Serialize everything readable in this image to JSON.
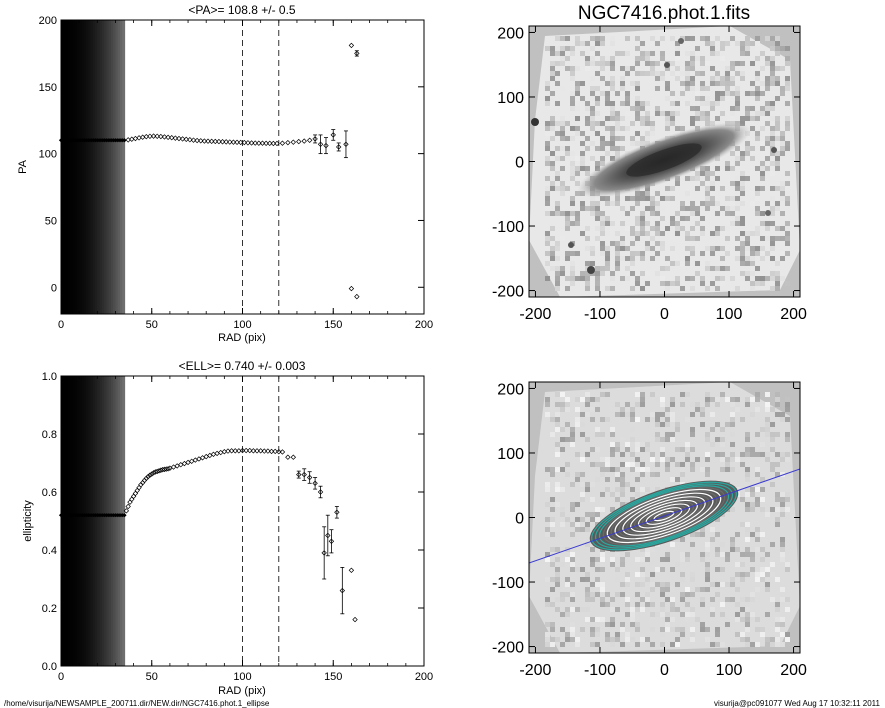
{
  "footer": {
    "path": "/home/visurija/NEWSAMPLE_200711.dir/NEW.dir/NGC7416.phot.1_ellipse",
    "user_stamp": "visurija@pc091077  Wed Aug 17 10:32:11 2011"
  },
  "chart_data": [
    {
      "id": "pa",
      "type": "scatter",
      "title": "<PA>= 108.8 +/-   0.5",
      "xlabel": "RAD (pix)",
      "ylabel": "PA",
      "xlim": [
        0,
        200
      ],
      "ylim": [
        -20,
        200
      ],
      "xticks": [
        "0",
        "50",
        "100",
        "150",
        "200"
      ],
      "yticks": [
        "0",
        "50",
        "100",
        "150",
        "200"
      ],
      "dashed_x": [
        100,
        120
      ],
      "shaded_band_x": [
        0,
        35
      ],
      "series": [
        {
          "x": [
            0,
            1,
            2,
            3,
            4,
            5,
            6,
            7,
            8,
            9,
            10,
            11,
            12,
            13,
            14,
            15,
            16,
            17,
            18,
            19,
            20,
            21,
            22,
            23,
            24,
            25,
            26,
            27,
            28,
            29,
            30,
            31,
            32,
            33,
            34,
            35,
            37,
            39,
            41,
            43,
            45,
            47,
            49,
            51,
            53,
            55,
            57,
            59,
            61,
            63,
            65,
            67,
            69,
            71,
            73,
            75,
            77,
            79,
            81,
            83,
            85,
            87,
            89,
            91,
            93,
            95,
            97,
            99,
            101,
            103,
            105,
            107,
            109,
            111,
            113,
            115,
            117,
            119,
            122,
            125,
            128,
            131,
            134,
            137,
            140,
            143,
            146,
            150,
            153,
            157,
            160,
            163
          ],
          "y": [
            110,
            110,
            110,
            110,
            110,
            110,
            110,
            110,
            110,
            110,
            110,
            110,
            110,
            110,
            110,
            110,
            110,
            110,
            110,
            110,
            110,
            110,
            110,
            110,
            110,
            110,
            110,
            110,
            110,
            110,
            110,
            110,
            110,
            110,
            110,
            110,
            110.3,
            110.8,
            111.3,
            111.8,
            112.3,
            112.7,
            113.0,
            113.1,
            113.0,
            112.8,
            112.5,
            112.2,
            111.9,
            111.6,
            111.3,
            111.0,
            110.7,
            110.4,
            110.1,
            109.8,
            109.6,
            109.4,
            109.3,
            109.2,
            109.1,
            109.0,
            108.9,
            108.8,
            108.7,
            108.6,
            108.5,
            108.4,
            108.3,
            108.1,
            108.0,
            107.9,
            107.8,
            107.8,
            107.7,
            107.7,
            107.6,
            107.6,
            107.8,
            108.2,
            108.6,
            109.0,
            109.4,
            110.0,
            111.0,
            107.0,
            106.0,
            114.0,
            105.0,
            107.0,
            181.0,
            175.0
          ],
          "err": [
            0,
            0,
            0,
            0,
            0,
            0,
            0,
            0,
            0,
            0,
            0,
            0,
            0,
            0,
            0,
            0,
            0,
            0,
            0,
            0,
            0,
            0,
            0,
            0,
            0,
            0,
            0,
            0,
            0,
            0,
            0,
            0,
            0,
            0,
            0,
            0,
            0,
            0,
            0,
            0,
            0,
            0,
            0,
            0,
            0,
            0,
            0,
            0,
            0,
            0,
            0,
            0,
            0,
            0,
            0,
            0,
            0,
            0,
            0,
            0,
            0,
            0,
            0,
            0,
            0,
            0,
            0,
            0,
            0,
            0,
            0,
            0,
            0,
            0,
            0,
            0,
            0,
            0,
            0,
            0,
            0,
            0,
            0,
            0,
            3,
            7,
            6,
            4,
            3,
            10,
            0,
            2
          ]
        },
        {
          "x": [
            160,
            163
          ],
          "y": [
            -1,
            -7
          ],
          "err": [
            0,
            0
          ]
        }
      ]
    },
    {
      "id": "ell",
      "type": "scatter",
      "title": "<ELL>= 0.740 +/-  0.003",
      "xlabel": "RAD (pix)",
      "ylabel": "ellipticity",
      "xlim": [
        0,
        200
      ],
      "ylim": [
        0,
        1
      ],
      "xticks": [
        "0",
        "50",
        "100",
        "150",
        "200"
      ],
      "yticks": [
        "0.0",
        "0.2",
        "0.4",
        "0.6",
        "0.8",
        "1.0"
      ],
      "dashed_x": [
        100,
        120
      ],
      "shaded_band_x": [
        0,
        35
      ],
      "series": [
        {
          "x": [
            0,
            1,
            2,
            3,
            4,
            5,
            6,
            7,
            8,
            9,
            10,
            11,
            12,
            13,
            14,
            15,
            16,
            17,
            18,
            19,
            20,
            21,
            22,
            23,
            24,
            25,
            26,
            27,
            28,
            29,
            30,
            31,
            32,
            33,
            34,
            35,
            36,
            37,
            38,
            39,
            40,
            41,
            42,
            43,
            44,
            45,
            46,
            47,
            48,
            49,
            50,
            51,
            52,
            53,
            54,
            55,
            56,
            57,
            58,
            59,
            60,
            62,
            64,
            66,
            68,
            70,
            72,
            74,
            76,
            78,
            80,
            82,
            84,
            86,
            88,
            90,
            92,
            94,
            96,
            98,
            100,
            102,
            104,
            106,
            108,
            110,
            112,
            114,
            116,
            118,
            120,
            122,
            125,
            128,
            131,
            134,
            137,
            140,
            143,
            145,
            147,
            149,
            152,
            155,
            160,
            162
          ],
          "y": [
            0.52,
            0.52,
            0.52,
            0.52,
            0.52,
            0.52,
            0.52,
            0.52,
            0.52,
            0.52,
            0.52,
            0.52,
            0.52,
            0.52,
            0.52,
            0.52,
            0.52,
            0.52,
            0.52,
            0.52,
            0.52,
            0.52,
            0.52,
            0.52,
            0.52,
            0.52,
            0.52,
            0.52,
            0.52,
            0.52,
            0.52,
            0.52,
            0.52,
            0.52,
            0.52,
            0.52,
            0.535,
            0.55,
            0.565,
            0.575,
            0.585,
            0.595,
            0.605,
            0.615,
            0.625,
            0.632,
            0.64,
            0.647,
            0.653,
            0.658,
            0.662,
            0.666,
            0.669,
            0.671,
            0.673,
            0.675,
            0.677,
            0.678,
            0.679,
            0.68,
            0.682,
            0.686,
            0.69,
            0.694,
            0.698,
            0.702,
            0.706,
            0.71,
            0.714,
            0.718,
            0.722,
            0.726,
            0.73,
            0.733,
            0.736,
            0.739,
            0.741,
            0.742,
            0.742,
            0.742,
            0.743,
            0.743,
            0.743,
            0.742,
            0.742,
            0.742,
            0.741,
            0.741,
            0.74,
            0.74,
            0.739,
            0.738,
            0.72,
            0.72,
            0.66,
            0.66,
            0.65,
            0.63,
            0.6,
            0.39,
            0.45,
            0.43,
            0.53,
            0.26,
            0.33,
            0.16
          ],
          "err": [
            0,
            0,
            0,
            0,
            0,
            0,
            0,
            0,
            0,
            0,
            0,
            0,
            0,
            0,
            0,
            0,
            0,
            0,
            0,
            0,
            0,
            0,
            0,
            0,
            0,
            0,
            0,
            0,
            0,
            0,
            0,
            0,
            0,
            0,
            0,
            0,
            0,
            0,
            0,
            0,
            0,
            0,
            0,
            0,
            0,
            0,
            0,
            0,
            0,
            0,
            0,
            0,
            0,
            0,
            0,
            0,
            0,
            0,
            0,
            0,
            0,
            0,
            0,
            0,
            0,
            0,
            0,
            0,
            0,
            0,
            0,
            0,
            0,
            0,
            0,
            0,
            0,
            0,
            0,
            0,
            0,
            0,
            0,
            0,
            0,
            0,
            0,
            0,
            0,
            0,
            0,
            0,
            0,
            0,
            0.012,
            0.02,
            0.02,
            0.02,
            0.02,
            0.09,
            0.07,
            0.04,
            0.02,
            0.08,
            0,
            0
          ]
        }
      ]
    },
    {
      "id": "image",
      "type": "heatmap",
      "title": "NGC7416.phot.1.fits",
      "xlim": [
        -210,
        210
      ],
      "ylim": [
        -210,
        210
      ],
      "xticks": [
        "-200",
        "-100",
        "0",
        "100",
        "200"
      ],
      "yticks": [
        "-200",
        "-100",
        "0",
        "100",
        "200"
      ]
    },
    {
      "id": "model",
      "type": "heatmap",
      "title": "",
      "xlim": [
        -210,
        210
      ],
      "ylim": [
        -210,
        210
      ],
      "xticks": [
        "-200",
        "-100",
        "0",
        "100",
        "200"
      ],
      "yticks": [
        "-200",
        "-100",
        "0",
        "100",
        "200"
      ],
      "line_color": "#3b3bd0",
      "contour_colors": [
        "#ffffff",
        "#2aa8a0",
        "#6a6a6a"
      ]
    }
  ]
}
